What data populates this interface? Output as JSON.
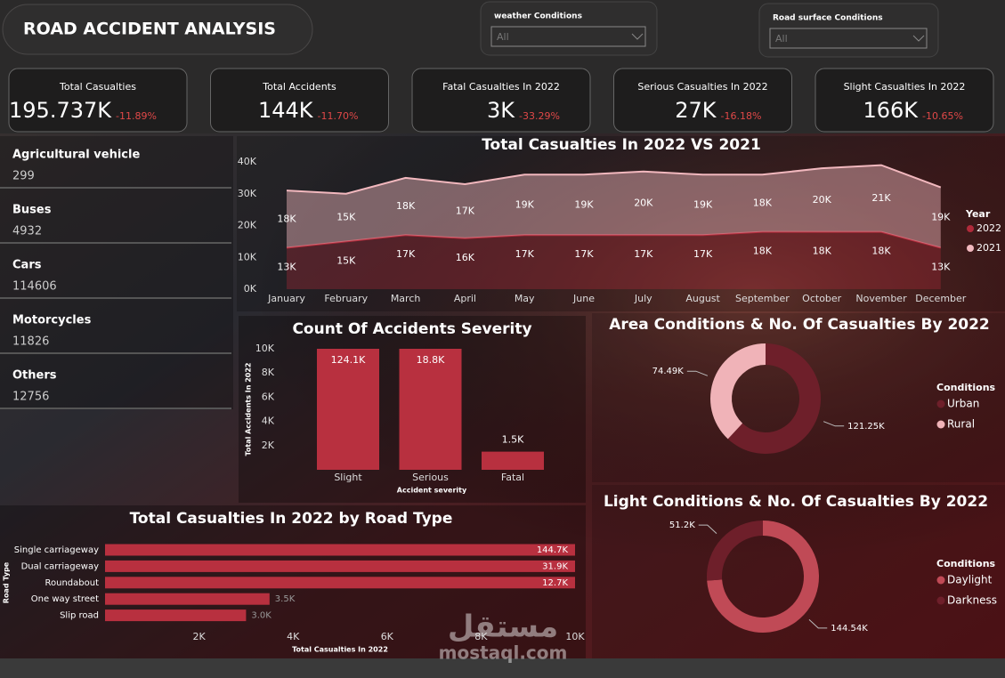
{
  "header": {
    "title": "ROAD ACCIDENT ANALYSIS"
  },
  "filters": [
    {
      "label": "weather Conditions",
      "value": "All"
    },
    {
      "label": "Road surface Conditions",
      "value": "All"
    }
  ],
  "kpis": [
    {
      "title": "Total Casualties",
      "value": "195.737K",
      "change": "-11.89%"
    },
    {
      "title": "Total Accidents",
      "value": "144K",
      "change": "-11.70%"
    },
    {
      "title": "Fatal Casualties In 2022",
      "value": "3K",
      "change": "-33.29%"
    },
    {
      "title": "Serious Casualties In 2022",
      "value": "27K",
      "change": "-16.18%"
    },
    {
      "title": "Slight Casualties In 2022",
      "value": "166K",
      "change": "-10.65%"
    }
  ],
  "vehicles": [
    {
      "name": "Agricultural vehicle",
      "value": 299
    },
    {
      "name": "Buses",
      "value": 4932
    },
    {
      "name": "Cars",
      "value": 114606
    },
    {
      "name": "Motorcycles",
      "value": 11826
    },
    {
      "name": "Others",
      "value": 12756
    }
  ],
  "chart_data": [
    {
      "type": "area",
      "title": "Total Casualties In 2022 VS 2021",
      "stacked": true,
      "categories": [
        "January",
        "February",
        "March",
        "April",
        "May",
        "June",
        "July",
        "August",
        "September",
        "October",
        "November",
        "December"
      ],
      "series": [
        {
          "name": "2022",
          "color": "#b02a3a",
          "values": [
            13000,
            15000,
            17000,
            16000,
            17000,
            17000,
            17000,
            17000,
            18000,
            18000,
            18000,
            13000
          ],
          "value_labels": [
            "13K",
            "15K",
            "17K",
            "16K",
            "17K",
            "17K",
            "17K",
            "17K",
            "18K",
            "18K",
            "18K",
            "13K"
          ]
        },
        {
          "name": "2021",
          "color": "#f2b8be",
          "values": [
            18000,
            15000,
            18000,
            17000,
            19000,
            19000,
            20000,
            19000,
            18000,
            20000,
            21000,
            19000
          ],
          "value_labels": [
            "18K",
            "15K",
            "18K",
            "17K",
            "19K",
            "19K",
            "20K",
            "19K",
            "18K",
            "20K",
            "21K",
            "19K"
          ]
        }
      ],
      "ylim": [
        0,
        40000
      ],
      "yticks": [
        {
          "value": 0,
          "label": "0K"
        },
        {
          "value": 10000,
          "label": "10K"
        },
        {
          "value": 20000,
          "label": "20K"
        },
        {
          "value": 30000,
          "label": "30K"
        },
        {
          "value": 40000,
          "label": "40K"
        }
      ],
      "legend_title": "Year",
      "legend": "right"
    },
    {
      "type": "bar",
      "title": "Count Of Accidents Severity",
      "x_label": "Accident severity",
      "y_label": "Total Accidents In 2022",
      "color": "#b8303f",
      "categories": [
        "Slight",
        "Serious",
        "Fatal"
      ],
      "values": [
        124100,
        18800,
        1500
      ],
      "value_labels": [
        "124.1K",
        "18.8K",
        "1.5K"
      ],
      "ylim": [
        0,
        10000
      ],
      "yticks": [
        {
          "value": 2000,
          "label": "2K"
        },
        {
          "value": 4000,
          "label": "4K"
        },
        {
          "value": 6000,
          "label": "6K"
        },
        {
          "value": 8000,
          "label": "8K"
        },
        {
          "value": 10000,
          "label": "10K"
        }
      ]
    },
    {
      "type": "hbar",
      "title": "Total Casualties In 2022 by Road Type",
      "x_label": "Total Casualties In 2022",
      "y_label": "Road Type",
      "color": "#b8303f",
      "categories": [
        "Single carriageway",
        "Dual carriageway",
        "Roundabout",
        "One way street",
        "Slip road"
      ],
      "values": [
        144700,
        31900,
        12700,
        3500,
        3000
      ],
      "value_labels": [
        "144.7K",
        "31.9K",
        "12.7K",
        "3.5K",
        "3.0K"
      ],
      "xlim": [
        0,
        10000
      ],
      "xticks": [
        {
          "value": 2000,
          "label": "2K"
        },
        {
          "value": 4000,
          "label": "4K"
        },
        {
          "value": 6000,
          "label": "6K"
        },
        {
          "value": 8000,
          "label": "8K"
        },
        {
          "value": 10000,
          "label": "10K"
        }
      ]
    },
    {
      "type": "donut",
      "title": "Area Conditions & No. Of Casualties By 2022",
      "categories": [
        "Urban",
        "Rural"
      ],
      "values": [
        121250,
        74490
      ],
      "value_labels": [
        "121.25K",
        "74.49K"
      ],
      "colors": [
        "#6e1f2a",
        "#f0b3b8"
      ],
      "legend_title": "Conditions",
      "legend": "right"
    },
    {
      "type": "donut",
      "title": "Light Conditions & No. Of Casualties By 2022",
      "categories": [
        "Daylight",
        "Darkness"
      ],
      "values": [
        144540,
        51200
      ],
      "value_labels": [
        "144.54K",
        "51.2K"
      ],
      "colors": [
        "#c04a56",
        "#6e1f2a"
      ],
      "legend_title": "Conditions",
      "legend": "right"
    }
  ],
  "watermark": {
    "arabic": "مستقل",
    "latin": "mostaql.com"
  }
}
